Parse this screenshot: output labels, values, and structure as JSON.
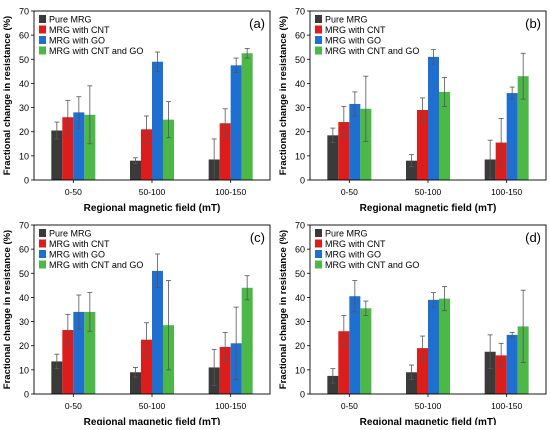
{
  "chart_data": [
    {
      "type": "bar",
      "panel_label": "(a)",
      "categories": [
        "0-50",
        "50-100",
        "100-150"
      ],
      "xlabel": "Regional magnetic field (mT)",
      "ylabel": "Fractional change in resistance (%)",
      "ylim": [
        0,
        70
      ],
      "yticks": [
        0,
        10,
        20,
        30,
        40,
        50,
        60,
        70
      ],
      "legend_position": "top-left",
      "series": [
        {
          "name": "Pure MRG",
          "color": "#3a3a3a",
          "values": [
            20.5,
            8,
            8.5
          ],
          "errors": [
            3.5,
            1.2,
            8.5
          ]
        },
        {
          "name": "MRG with CNT",
          "color": "#dd1c1c",
          "values": [
            26,
            21,
            23.5
          ],
          "errors": [
            7,
            5.5,
            6
          ]
        },
        {
          "name": "MRG with GO",
          "color": "#1f6fd0",
          "values": [
            28,
            49,
            47.5
          ],
          "errors": [
            6.5,
            4,
            3
          ]
        },
        {
          "name": "MRG with CNT and GO",
          "color": "#4cb848",
          "values": [
            27,
            25,
            52.5
          ],
          "errors": [
            12,
            7.5,
            2
          ]
        }
      ]
    },
    {
      "type": "bar",
      "panel_label": "(b)",
      "categories": [
        "0-50",
        "50-100",
        "100-150"
      ],
      "xlabel": "Regional magnetic field (mT)",
      "ylabel": "Fractional change in resistance (%)",
      "ylim": [
        0,
        70
      ],
      "yticks": [
        0,
        10,
        20,
        30,
        40,
        50,
        60,
        70
      ],
      "legend_position": "top-left",
      "series": [
        {
          "name": "Pure MRG",
          "color": "#3a3a3a",
          "values": [
            18.5,
            8,
            8.5
          ],
          "errors": [
            3,
            2.5,
            8
          ]
        },
        {
          "name": "MRG with CNT",
          "color": "#dd1c1c",
          "values": [
            24,
            29,
            15.5
          ],
          "errors": [
            6.5,
            5,
            10
          ]
        },
        {
          "name": "MRG with GO",
          "color": "#1f6fd0",
          "values": [
            31.5,
            51,
            36
          ],
          "errors": [
            5,
            3,
            2.5
          ]
        },
        {
          "name": "MRG with CNT and GO",
          "color": "#4cb848",
          "values": [
            29.5,
            36.5,
            43
          ],
          "errors": [
            13.5,
            6,
            9.5
          ]
        }
      ]
    },
    {
      "type": "bar",
      "panel_label": "(c)",
      "categories": [
        "0-50",
        "50-100",
        "100-150"
      ],
      "xlabel": "Regional magnetic field (mT)",
      "ylabel": "Fractional change in resistance (%)",
      "ylim": [
        0,
        70
      ],
      "yticks": [
        0,
        10,
        20,
        30,
        40,
        50,
        60,
        70
      ],
      "legend_position": "top-left",
      "series": [
        {
          "name": "Pure MRG",
          "color": "#3a3a3a",
          "values": [
            13.5,
            9,
            11
          ],
          "errors": [
            3,
            2,
            7.5
          ]
        },
        {
          "name": "MRG with CNT",
          "color": "#dd1c1c",
          "values": [
            26.5,
            22.5,
            19.5
          ],
          "errors": [
            6.5,
            7,
            6
          ]
        },
        {
          "name": "MRG with GO",
          "color": "#1f6fd0",
          "values": [
            34,
            51,
            21
          ],
          "errors": [
            7,
            7,
            15
          ]
        },
        {
          "name": "MRG with CNT and GO",
          "color": "#4cb848",
          "values": [
            34,
            28.5,
            44
          ],
          "errors": [
            8,
            18.5,
            5
          ]
        }
      ]
    },
    {
      "type": "bar",
      "panel_label": "(d)",
      "categories": [
        "0-50",
        "50-100",
        "100-150"
      ],
      "xlabel": "Regional magnetic field (mT)",
      "ylabel": "Fractional change in resistance (%)",
      "ylim": [
        0,
        70
      ],
      "yticks": [
        0,
        10,
        20,
        30,
        40,
        50,
        60,
        70
      ],
      "legend_position": "top-left",
      "series": [
        {
          "name": "Pure MRG",
          "color": "#3a3a3a",
          "values": [
            7.5,
            9,
            17.5
          ],
          "errors": [
            3,
            3,
            7
          ]
        },
        {
          "name": "MRG with CNT",
          "color": "#dd1c1c",
          "values": [
            26,
            19,
            16
          ],
          "errors": [
            6.5,
            5,
            5
          ]
        },
        {
          "name": "MRG with GO",
          "color": "#1f6fd0",
          "values": [
            40.5,
            39,
            24.5
          ],
          "errors": [
            6.5,
            3,
            1
          ]
        },
        {
          "name": "MRG with CNT and GO",
          "color": "#4cb848",
          "values": [
            35.5,
            39.5,
            28
          ],
          "errors": [
            3,
            5,
            15
          ]
        }
      ]
    }
  ]
}
